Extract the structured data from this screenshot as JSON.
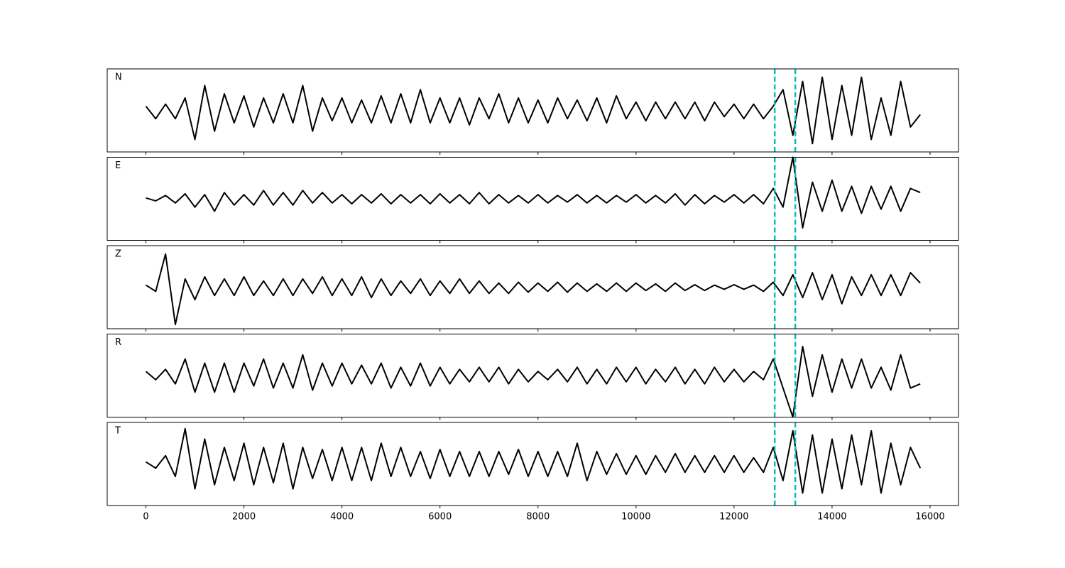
{
  "chart_data": [
    {
      "type": "line",
      "label": "N",
      "color": "#000000",
      "vline_color": "#00bfbf",
      "vlines": [
        12830,
        13250
      ],
      "xlim": [
        -790,
        16580
      ],
      "ylim": [
        -1,
        1
      ],
      "xticks": [
        0,
        2000,
        4000,
        6000,
        8000,
        10000,
        12000,
        14000,
        16000
      ],
      "x": [
        0,
        200,
        400,
        600,
        800,
        1000,
        1200,
        1400,
        1600,
        1800,
        2000,
        2200,
        2400,
        2600,
        2800,
        3000,
        3200,
        3400,
        3600,
        3800,
        4000,
        4200,
        4400,
        4600,
        4800,
        5000,
        5200,
        5400,
        5600,
        5800,
        6000,
        6200,
        6400,
        6600,
        6800,
        7000,
        7200,
        7400,
        7600,
        7800,
        8000,
        8200,
        8400,
        8600,
        8800,
        9000,
        9200,
        9400,
        9600,
        9800,
        10000,
        10200,
        10400,
        10600,
        10800,
        11000,
        11200,
        11400,
        11600,
        11800,
        12000,
        12200,
        12400,
        12600,
        12800,
        13000,
        13200,
        13400,
        13600,
        13800,
        14000,
        14200,
        14400,
        14600,
        14800,
        15000,
        15200,
        15400,
        15600,
        15800
      ],
      "values": [
        0.1,
        -0.2,
        0.15,
        -0.2,
        0.3,
        -0.7,
        0.6,
        -0.5,
        0.4,
        -0.3,
        0.35,
        -0.4,
        0.3,
        -0.3,
        0.4,
        -0.3,
        0.6,
        -0.5,
        0.3,
        -0.25,
        0.3,
        -0.3,
        0.25,
        -0.3,
        0.35,
        -0.3,
        0.4,
        -0.3,
        0.5,
        -0.3,
        0.3,
        -0.3,
        0.3,
        -0.35,
        0.3,
        -0.2,
        0.4,
        -0.3,
        0.3,
        -0.3,
        0.25,
        -0.3,
        0.3,
        -0.2,
        0.25,
        -0.25,
        0.3,
        -0.3,
        0.35,
        -0.2,
        0.2,
        -0.25,
        0.2,
        -0.2,
        0.2,
        -0.2,
        0.2,
        -0.25,
        0.2,
        -0.15,
        0.15,
        -0.2,
        0.15,
        -0.2,
        0.1,
        0.5,
        -0.6,
        0.7,
        -0.8,
        0.8,
        -0.7,
        0.6,
        -0.6,
        0.8,
        -0.7,
        0.3,
        -0.6,
        0.7,
        -0.4,
        -0.1
      ]
    },
    {
      "type": "line",
      "label": "E",
      "color": "#000000",
      "vline_color": "#00bfbf",
      "vlines": [
        12830,
        13250
      ],
      "xlim": [
        -790,
        16580
      ],
      "ylim": [
        -1,
        1
      ],
      "xticks": [
        0,
        2000,
        4000,
        6000,
        8000,
        10000,
        12000,
        14000,
        16000
      ],
      "x": [
        0,
        200,
        400,
        600,
        800,
        1000,
        1200,
        1400,
        1600,
        1800,
        2000,
        2200,
        2400,
        2600,
        2800,
        3000,
        3200,
        3400,
        3600,
        3800,
        4000,
        4200,
        4400,
        4600,
        4800,
        5000,
        5200,
        5400,
        5600,
        5800,
        6000,
        6200,
        6400,
        6600,
        6800,
        7000,
        7200,
        7400,
        7600,
        7800,
        8000,
        8200,
        8400,
        8600,
        8800,
        9000,
        9200,
        9400,
        9600,
        9800,
        10000,
        10200,
        10400,
        10600,
        10800,
        11000,
        11200,
        11400,
        11600,
        11800,
        12000,
        12200,
        12400,
        12600,
        12800,
        13000,
        13200,
        13400,
        13600,
        13800,
        14000,
        14200,
        14400,
        14600,
        14800,
        15000,
        15200,
        15400,
        15600,
        15800
      ],
      "values": [
        0.02,
        -0.05,
        0.08,
        -0.1,
        0.12,
        -0.2,
        0.1,
        -0.3,
        0.15,
        -0.15,
        0.1,
        -0.15,
        0.2,
        -0.15,
        0.15,
        -0.15,
        0.2,
        -0.1,
        0.15,
        -0.1,
        0.1,
        -0.12,
        0.1,
        -0.1,
        0.12,
        -0.12,
        0.1,
        -0.1,
        0.1,
        -0.12,
        0.12,
        -0.1,
        0.1,
        -0.12,
        0.15,
        -0.12,
        0.1,
        -0.1,
        0.08,
        -0.1,
        0.1,
        -0.1,
        0.08,
        -0.08,
        0.1,
        -0.1,
        0.08,
        -0.1,
        0.08,
        -0.08,
        0.1,
        -0.1,
        0.08,
        -0.1,
        0.12,
        -0.15,
        0.1,
        -0.12,
        0.08,
        -0.08,
        0.1,
        -0.1,
        0.1,
        -0.12,
        0.25,
        -0.2,
        1.0,
        -0.7,
        0.4,
        -0.3,
        0.45,
        -0.3,
        0.3,
        -0.35,
        0.3,
        -0.25,
        0.3,
        -0.3,
        0.25,
        0.15
      ]
    },
    {
      "type": "line",
      "label": "Z",
      "color": "#000000",
      "vline_color": "#00bfbf",
      "vlines": [
        12830,
        13250
      ],
      "xlim": [
        -790,
        16580
      ],
      "ylim": [
        -1,
        1
      ],
      "xticks": [
        0,
        2000,
        4000,
        6000,
        8000,
        10000,
        12000,
        14000,
        16000
      ],
      "x": [
        0,
        200,
        400,
        600,
        800,
        1000,
        1200,
        1400,
        1600,
        1800,
        2000,
        2200,
        2400,
        2600,
        2800,
        3000,
        3200,
        3400,
        3600,
        3800,
        4000,
        4200,
        4400,
        4600,
        4800,
        5000,
        5200,
        5400,
        5600,
        5800,
        6000,
        6200,
        6400,
        6600,
        6800,
        7000,
        7200,
        7400,
        7600,
        7800,
        8000,
        8200,
        8400,
        8600,
        8800,
        9000,
        9200,
        9400,
        9600,
        9800,
        10000,
        10200,
        10400,
        10600,
        10800,
        11000,
        11200,
        11400,
        11600,
        11800,
        12000,
        12200,
        12400,
        12600,
        12800,
        13000,
        13200,
        13400,
        13600,
        13800,
        14000,
        14200,
        14400,
        14600,
        14800,
        15000,
        15200,
        15400,
        15600,
        15800
      ],
      "values": [
        0.05,
        -0.1,
        0.8,
        -0.9,
        0.2,
        -0.3,
        0.25,
        -0.2,
        0.2,
        -0.2,
        0.25,
        -0.2,
        0.15,
        -0.2,
        0.2,
        -0.2,
        0.2,
        -0.15,
        0.25,
        -0.2,
        0.2,
        -0.2,
        0.25,
        -0.25,
        0.2,
        -0.2,
        0.15,
        -0.15,
        0.2,
        -0.2,
        0.15,
        -0.15,
        0.2,
        -0.15,
        0.15,
        -0.15,
        0.1,
        -0.15,
        0.12,
        -0.12,
        0.1,
        -0.1,
        0.12,
        -0.12,
        0.1,
        -0.1,
        0.08,
        -0.1,
        0.1,
        -0.1,
        0.1,
        -0.08,
        0.08,
        -0.1,
        0.1,
        -0.08,
        0.06,
        -0.08,
        0.05,
        -0.05,
        0.06,
        -0.05,
        0.05,
        -0.1,
        0.12,
        -0.2,
        0.3,
        -0.25,
        0.35,
        -0.3,
        0.3,
        -0.4,
        0.25,
        -0.2,
        0.3,
        -0.2,
        0.3,
        -0.2,
        0.35,
        0.1
      ]
    },
    {
      "type": "line",
      "label": "R",
      "color": "#000000",
      "vline_color": "#00bfbf",
      "vlines": [
        12830,
        13250
      ],
      "xlim": [
        -790,
        16580
      ],
      "ylim": [
        -1,
        1
      ],
      "xticks": [
        0,
        2000,
        4000,
        6000,
        8000,
        10000,
        12000,
        14000,
        16000
      ],
      "x": [
        0,
        200,
        400,
        600,
        800,
        1000,
        1200,
        1400,
        1600,
        1800,
        2000,
        2200,
        2400,
        2600,
        2800,
        3000,
        3200,
        3400,
        3600,
        3800,
        4000,
        4200,
        4400,
        4600,
        4800,
        5000,
        5200,
        5400,
        5600,
        5800,
        6000,
        6200,
        6400,
        6600,
        6800,
        7000,
        7200,
        7400,
        7600,
        7800,
        8000,
        8200,
        8400,
        8600,
        8800,
        9000,
        9200,
        9400,
        9600,
        9800,
        10000,
        10200,
        10400,
        10600,
        10800,
        11000,
        11200,
        11400,
        11600,
        11800,
        12000,
        12200,
        12400,
        12600,
        12800,
        13000,
        13200,
        13400,
        13600,
        13800,
        14000,
        14200,
        14400,
        14600,
        14800,
        15000,
        15200,
        15400,
        15600,
        15800
      ],
      "values": [
        0.1,
        -0.1,
        0.15,
        -0.2,
        0.4,
        -0.4,
        0.3,
        -0.4,
        0.3,
        -0.4,
        0.3,
        -0.25,
        0.4,
        -0.3,
        0.3,
        -0.3,
        0.5,
        -0.35,
        0.3,
        -0.25,
        0.3,
        -0.2,
        0.25,
        -0.2,
        0.3,
        -0.3,
        0.2,
        -0.25,
        0.3,
        -0.25,
        0.2,
        -0.2,
        0.15,
        -0.15,
        0.2,
        -0.15,
        0.2,
        -0.2,
        0.15,
        -0.15,
        0.1,
        -0.1,
        0.15,
        -0.15,
        0.2,
        -0.2,
        0.15,
        -0.2,
        0.2,
        -0.15,
        0.2,
        -0.2,
        0.15,
        -0.15,
        0.2,
        -0.2,
        0.15,
        -0.2,
        0.2,
        -0.15,
        0.15,
        -0.15,
        0.1,
        -0.1,
        0.4,
        -0.3,
        -1.0,
        0.7,
        -0.5,
        0.5,
        -0.4,
        0.4,
        -0.3,
        0.4,
        -0.3,
        0.2,
        -0.35,
        0.5,
        -0.3,
        -0.2
      ]
    },
    {
      "type": "line",
      "label": "T",
      "color": "#000000",
      "vline_color": "#00bfbf",
      "vlines": [
        12830,
        13250
      ],
      "xlim": [
        -790,
        16580
      ],
      "ylim": [
        -1,
        1
      ],
      "xticks": [
        0,
        2000,
        4000,
        6000,
        8000,
        10000,
        12000,
        14000,
        16000
      ],
      "x": [
        0,
        200,
        400,
        600,
        800,
        1000,
        1200,
        1400,
        1600,
        1800,
        2000,
        2200,
        2400,
        2600,
        2800,
        3000,
        3200,
        3400,
        3600,
        3800,
        4000,
        4200,
        4400,
        4600,
        4800,
        5000,
        5200,
        5400,
        5600,
        5800,
        6000,
        6200,
        6400,
        6600,
        6800,
        7000,
        7200,
        7400,
        7600,
        7800,
        8000,
        8200,
        8400,
        8600,
        8800,
        9000,
        9200,
        9400,
        9600,
        9800,
        10000,
        10200,
        10400,
        10600,
        10800,
        11000,
        11200,
        11400,
        11600,
        11800,
        12000,
        12200,
        12400,
        12600,
        12800,
        13000,
        13200,
        13400,
        13600,
        13800,
        14000,
        14200,
        14400,
        14600,
        14800,
        15000,
        15200,
        15400,
        15600,
        15800
      ],
      "values": [
        0.05,
        -0.1,
        0.2,
        -0.3,
        0.85,
        -0.6,
        0.6,
        -0.5,
        0.4,
        -0.4,
        0.5,
        -0.5,
        0.4,
        -0.45,
        0.5,
        -0.6,
        0.4,
        -0.35,
        0.35,
        -0.4,
        0.4,
        -0.4,
        0.4,
        -0.4,
        0.5,
        -0.3,
        0.4,
        -0.3,
        0.3,
        -0.35,
        0.35,
        -0.3,
        0.3,
        -0.3,
        0.3,
        -0.3,
        0.3,
        -0.25,
        0.35,
        -0.3,
        0.3,
        -0.3,
        0.3,
        -0.3,
        0.5,
        -0.4,
        0.3,
        -0.25,
        0.25,
        -0.25,
        0.2,
        -0.25,
        0.2,
        -0.2,
        0.25,
        -0.2,
        0.2,
        -0.2,
        0.2,
        -0.2,
        0.2,
        -0.2,
        0.15,
        -0.2,
        0.4,
        -0.4,
        0.8,
        -0.7,
        0.7,
        -0.7,
        0.6,
        -0.6,
        0.7,
        -0.5,
        0.8,
        -0.7,
        0.5,
        -0.5,
        0.4,
        -0.1
      ]
    }
  ]
}
